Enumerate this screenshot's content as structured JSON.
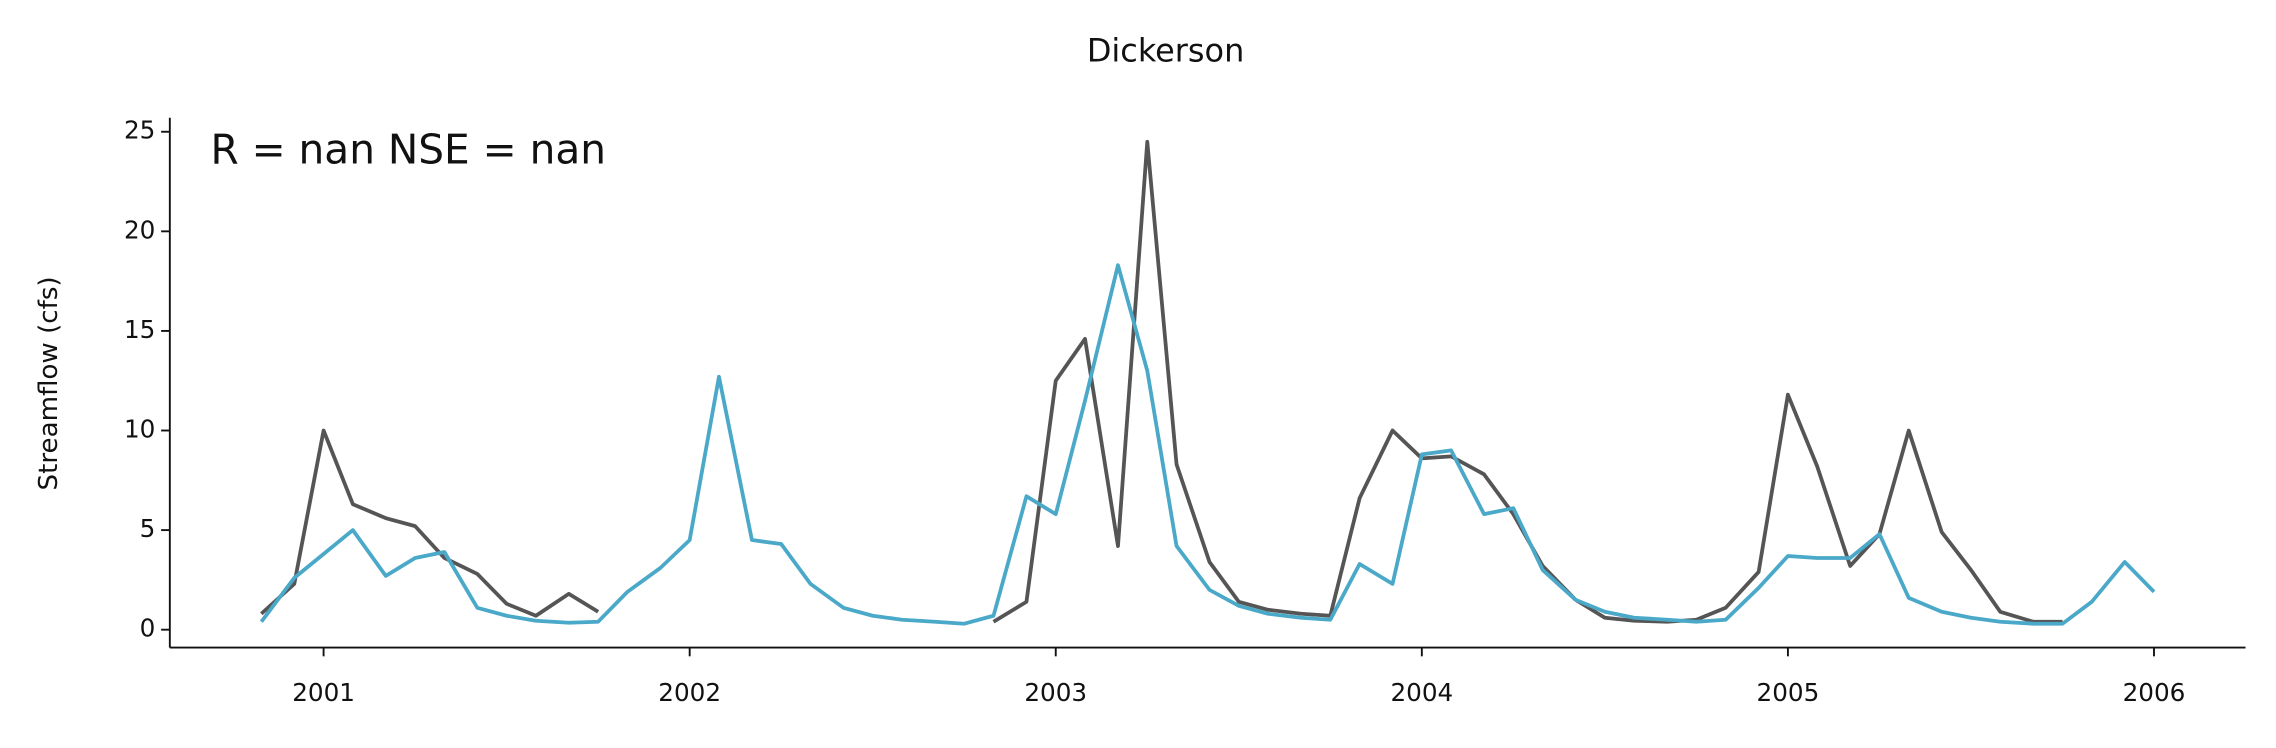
{
  "chart_data": {
    "type": "line",
    "title": "Dickerson",
    "ylabel": "Streamflow (cfs)",
    "annotation": "R = nan  NSE = nan",
    "x": [
      2000.83,
      2000.92,
      2001,
      2001.08,
      2001.17,
      2001.25,
      2001.33,
      2001.42,
      2001.5,
      2001.58,
      2001.67,
      2001.75,
      2001.83,
      2001.92,
      2002,
      2002.08,
      2002.17,
      2002.25,
      2002.33,
      2002.42,
      2002.5,
      2002.58,
      2002.67,
      2002.75,
      2002.83,
      2002.92,
      2003,
      2003.08,
      2003.17,
      2003.25,
      2003.33,
      2003.42,
      2003.5,
      2003.58,
      2003.67,
      2003.75,
      2003.83,
      2003.92,
      2004,
      2004.08,
      2004.17,
      2004.25,
      2004.33,
      2004.42,
      2004.5,
      2004.58,
      2004.67,
      2004.75,
      2004.83,
      2004.92,
      2005,
      2005.08,
      2005.17,
      2005.25,
      2005.33,
      2005.42,
      2005.5,
      2005.58,
      2005.67,
      2005.75,
      2005.83,
      2005.92,
      2006
    ],
    "series": [
      {
        "color": "#555555",
        "values": [
          0.8,
          2.3,
          10,
          6.3,
          5.6,
          5.2,
          3.6,
          2.8,
          1.3,
          0.7,
          1.8,
          0.9,
          null,
          null,
          null,
          null,
          null,
          null,
          null,
          null,
          null,
          null,
          null,
          null,
          0.4,
          1.4,
          12.5,
          14.6,
          4.2,
          24.5,
          8.3,
          3.4,
          1.4,
          1.0,
          0.8,
          0.7,
          6.6,
          10,
          8.6,
          8.7,
          7.8,
          5.8,
          3.2,
          1.5,
          0.6,
          0.45,
          0.4,
          0.5,
          1.1,
          2.9,
          11.8,
          8.2,
          3.2,
          4.8,
          10,
          4.9,
          3.0,
          0.9,
          0.4,
          0.4,
          null,
          null,
          null
        ]
      },
      {
        "color": "#4aa8c8",
        "values": [
          0.4,
          2.6,
          3.8,
          5.0,
          2.7,
          3.6,
          3.9,
          1.1,
          0.7,
          0.45,
          0.35,
          0.4,
          1.9,
          3.1,
          4.5,
          12.7,
          4.5,
          4.3,
          2.3,
          1.1,
          0.7,
          0.5,
          0.4,
          0.3,
          0.7,
          6.7,
          5.8,
          11.5,
          18.3,
          13,
          4.2,
          2.0,
          1.2,
          0.8,
          0.6,
          0.5,
          3.3,
          2.3,
          8.8,
          9.0,
          5.8,
          6.1,
          3.0,
          1.5,
          0.9,
          0.6,
          0.5,
          0.4,
          0.5,
          2.1,
          3.7,
          3.6,
          3.6,
          4.8,
          1.6,
          0.9,
          0.6,
          0.4,
          0.3,
          0.3,
          1.4,
          3.4,
          1.9
        ]
      }
    ],
    "xlim": [
      2000.58,
      2006.25
    ],
    "xticks": [
      2001,
      2002,
      2003,
      2004,
      2005,
      2006
    ],
    "ylim": [
      -0.9,
      25.7
    ],
    "yticks": [
      0,
      5,
      10,
      15,
      20,
      25
    ],
    "grid": false
  }
}
